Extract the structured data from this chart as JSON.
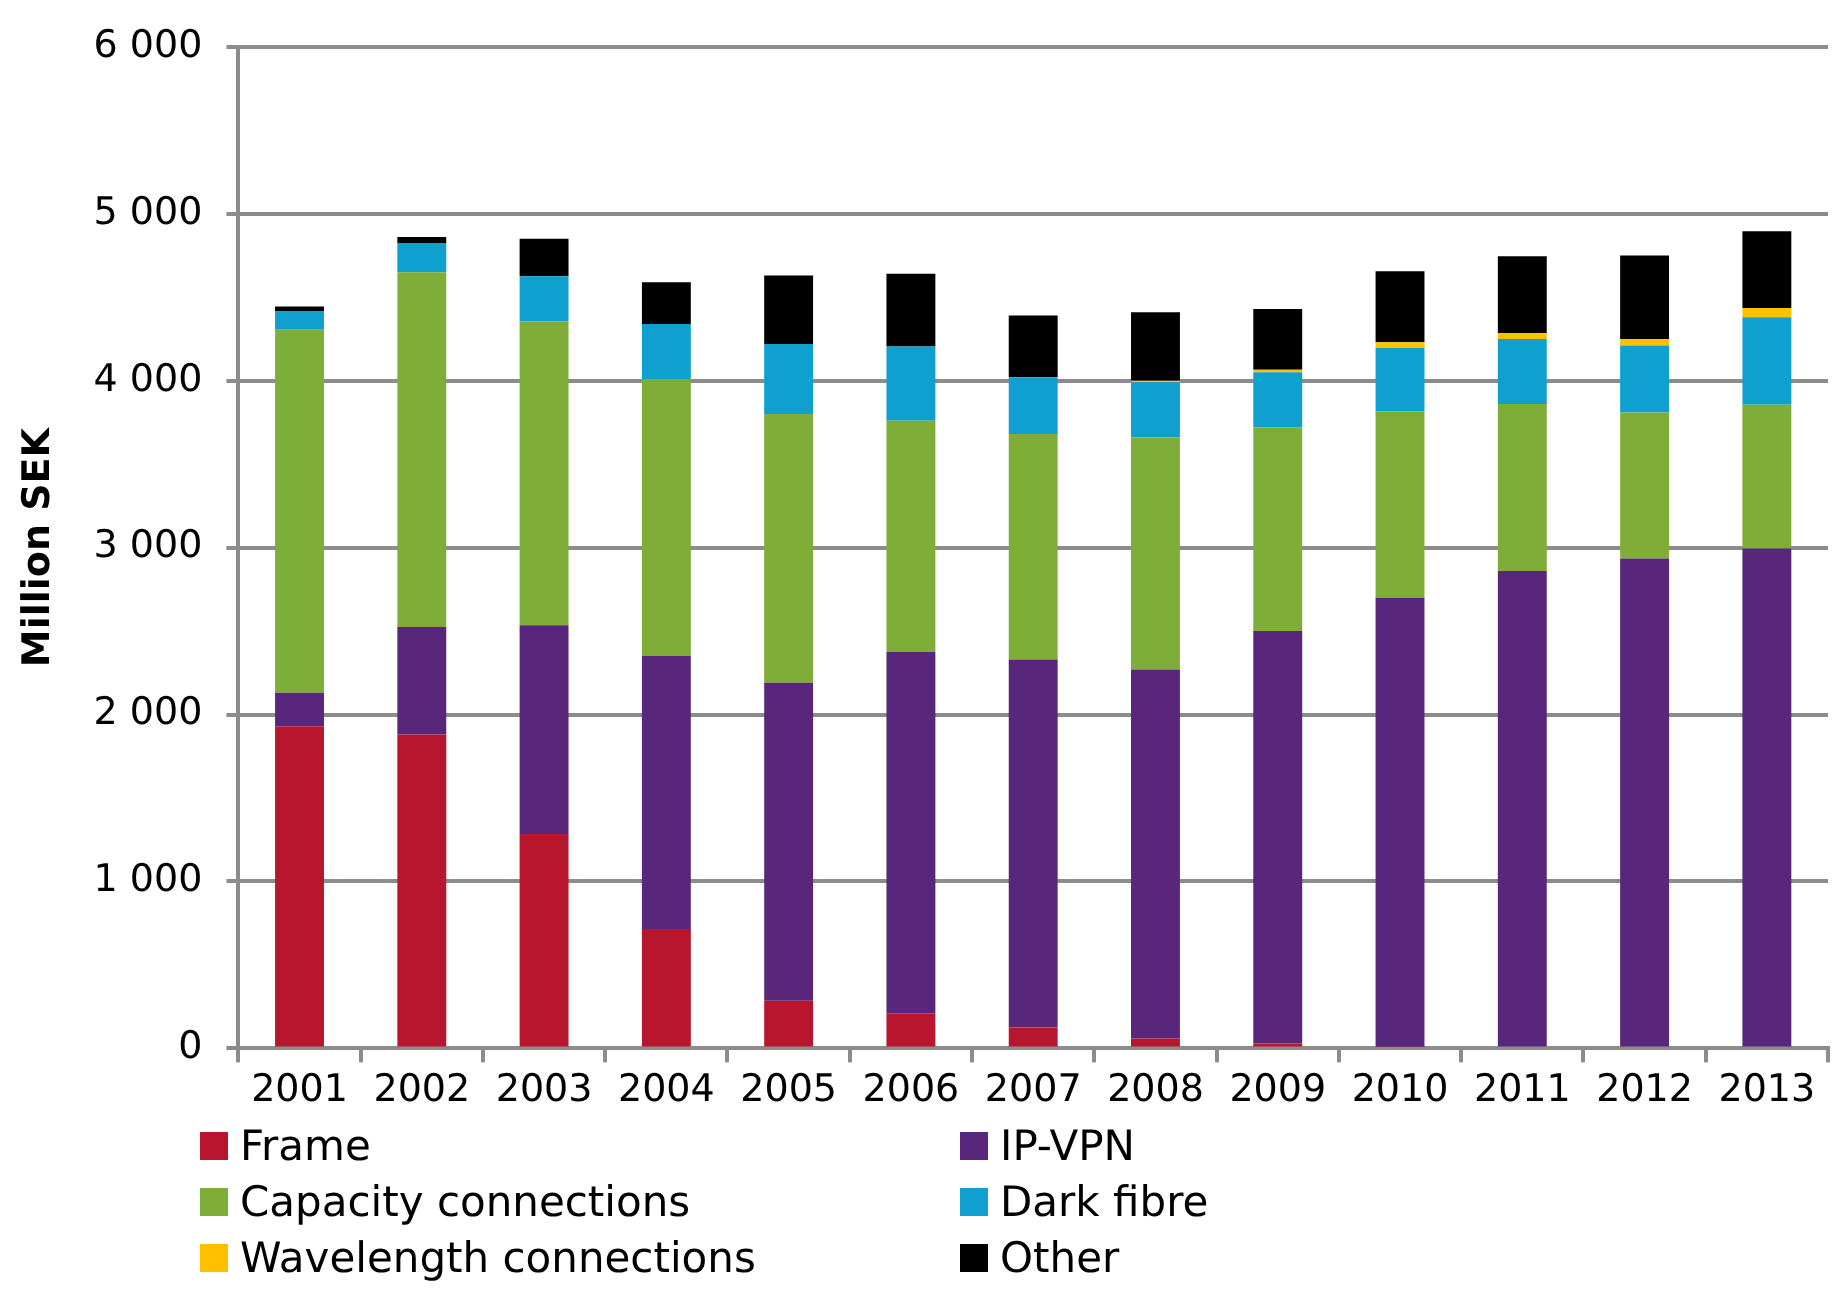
{
  "chart_data": {
    "type": "bar",
    "stacked": true,
    "ylabel": "Million SEK",
    "categories": [
      "2001",
      "2002",
      "2003",
      "2004",
      "2005",
      "2006",
      "2007",
      "2008",
      "2009",
      "2010",
      "2011",
      "2012",
      "2013"
    ],
    "series": [
      {
        "name": "Frame",
        "color": "#b8162f",
        "values": [
          1930,
          1880,
          1285,
          715,
          285,
          210,
          125,
          60,
          30,
          10,
          0,
          0,
          0
        ]
      },
      {
        "name": "IP-VPN",
        "color": "#58267a",
        "values": [
          200,
          645,
          1250,
          1635,
          1905,
          2165,
          2205,
          2210,
          2470,
          2690,
          2860,
          2935,
          2995
        ]
      },
      {
        "name": "Capacity connections",
        "color": "#7fae38",
        "values": [
          2175,
          2125,
          1820,
          1660,
          1610,
          1385,
          1350,
          1390,
          1220,
          1115,
          1000,
          875,
          860
        ]
      },
      {
        "name": "Dark fibre",
        "color": "#10a0cf",
        "values": [
          110,
          175,
          270,
          330,
          420,
          445,
          340,
          330,
          330,
          380,
          390,
          400,
          525
        ]
      },
      {
        "name": "Wavelength connections",
        "color": "#ffc000",
        "values": [
          0,
          0,
          0,
          0,
          0,
          0,
          0,
          10,
          15,
          35,
          35,
          40,
          55
        ]
      },
      {
        "name": "Other",
        "color": "#000000",
        "values": [
          30,
          35,
          225,
          250,
          410,
          435,
          370,
          410,
          365,
          425,
          460,
          500,
          460
        ]
      }
    ],
    "ylim": [
      0,
      6000
    ],
    "yticks": [
      {
        "value": 0,
        "label": "0"
      },
      {
        "value": 1000,
        "label": "1 000"
      },
      {
        "value": 2000,
        "label": "2 000"
      },
      {
        "value": 3000,
        "label": "3 000"
      },
      {
        "value": 4000,
        "label": "4 000"
      },
      {
        "value": 5000,
        "label": "5 000"
      },
      {
        "value": 6000,
        "label": "6 000"
      }
    ],
    "grid": "y",
    "legend": "bottom"
  }
}
